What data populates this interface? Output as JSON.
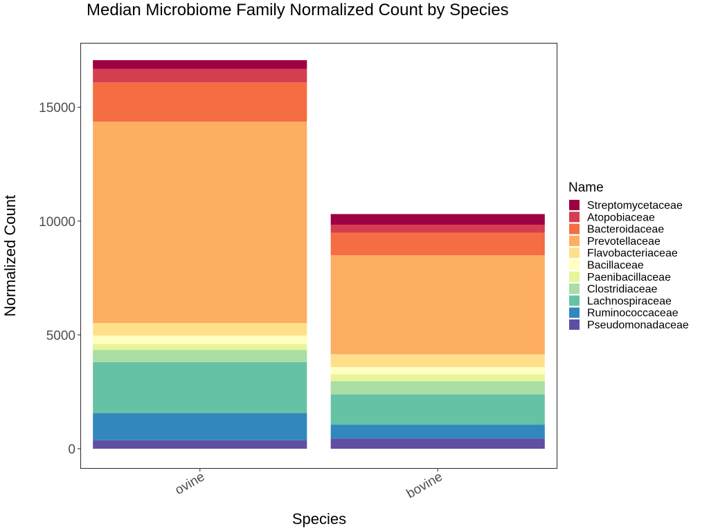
{
  "chart_data": {
    "type": "bar",
    "stacked": true,
    "title": "Median Microbiome Family Normalized Count by Species",
    "xlabel": "Species",
    "ylabel": "Normalized Count",
    "categories": [
      "ovine",
      "bovine"
    ],
    "ylim": [
      -850,
      17800
    ],
    "yticks": [
      0,
      5000,
      10000,
      15000
    ],
    "yticks_labels": [
      "0",
      "5000",
      "10000",
      "15000"
    ],
    "grid": false,
    "legend": {
      "title": "Name",
      "position": "right"
    },
    "series": [
      {
        "name": "Pseudomonadaceae",
        "color": "#5E4FA2",
        "values": [
          370,
          450
        ]
      },
      {
        "name": "Ruminococcaceae",
        "color": "#3288BD",
        "values": [
          1200,
          610
        ]
      },
      {
        "name": "Lachnospiraceae",
        "color": "#66C2A5",
        "values": [
          2230,
          1330
        ]
      },
      {
        "name": "Clostridiaceae",
        "color": "#ABDDA4",
        "values": [
          540,
          580
        ]
      },
      {
        "name": "Paenibacillaceae",
        "color": "#E6F598",
        "values": [
          260,
          300
        ]
      },
      {
        "name": "Bacillaceae",
        "color": "#FFFFBF",
        "values": [
          370,
          320
        ]
      },
      {
        "name": "Flavobacteriaceae",
        "color": "#FEE08B",
        "values": [
          550,
          560
        ]
      },
      {
        "name": "Prevotellaceae",
        "color": "#FDAE61",
        "values": [
          8850,
          4350
        ]
      },
      {
        "name": "Bacteroidaceae",
        "color": "#F46D43",
        "values": [
          1720,
          990
        ]
      },
      {
        "name": "Atopobiaceae",
        "color": "#D53E4F",
        "values": [
          600,
          350
        ]
      },
      {
        "name": "Streptomycetaceae",
        "color": "#9E0142",
        "values": [
          380,
          470
        ]
      }
    ]
  }
}
